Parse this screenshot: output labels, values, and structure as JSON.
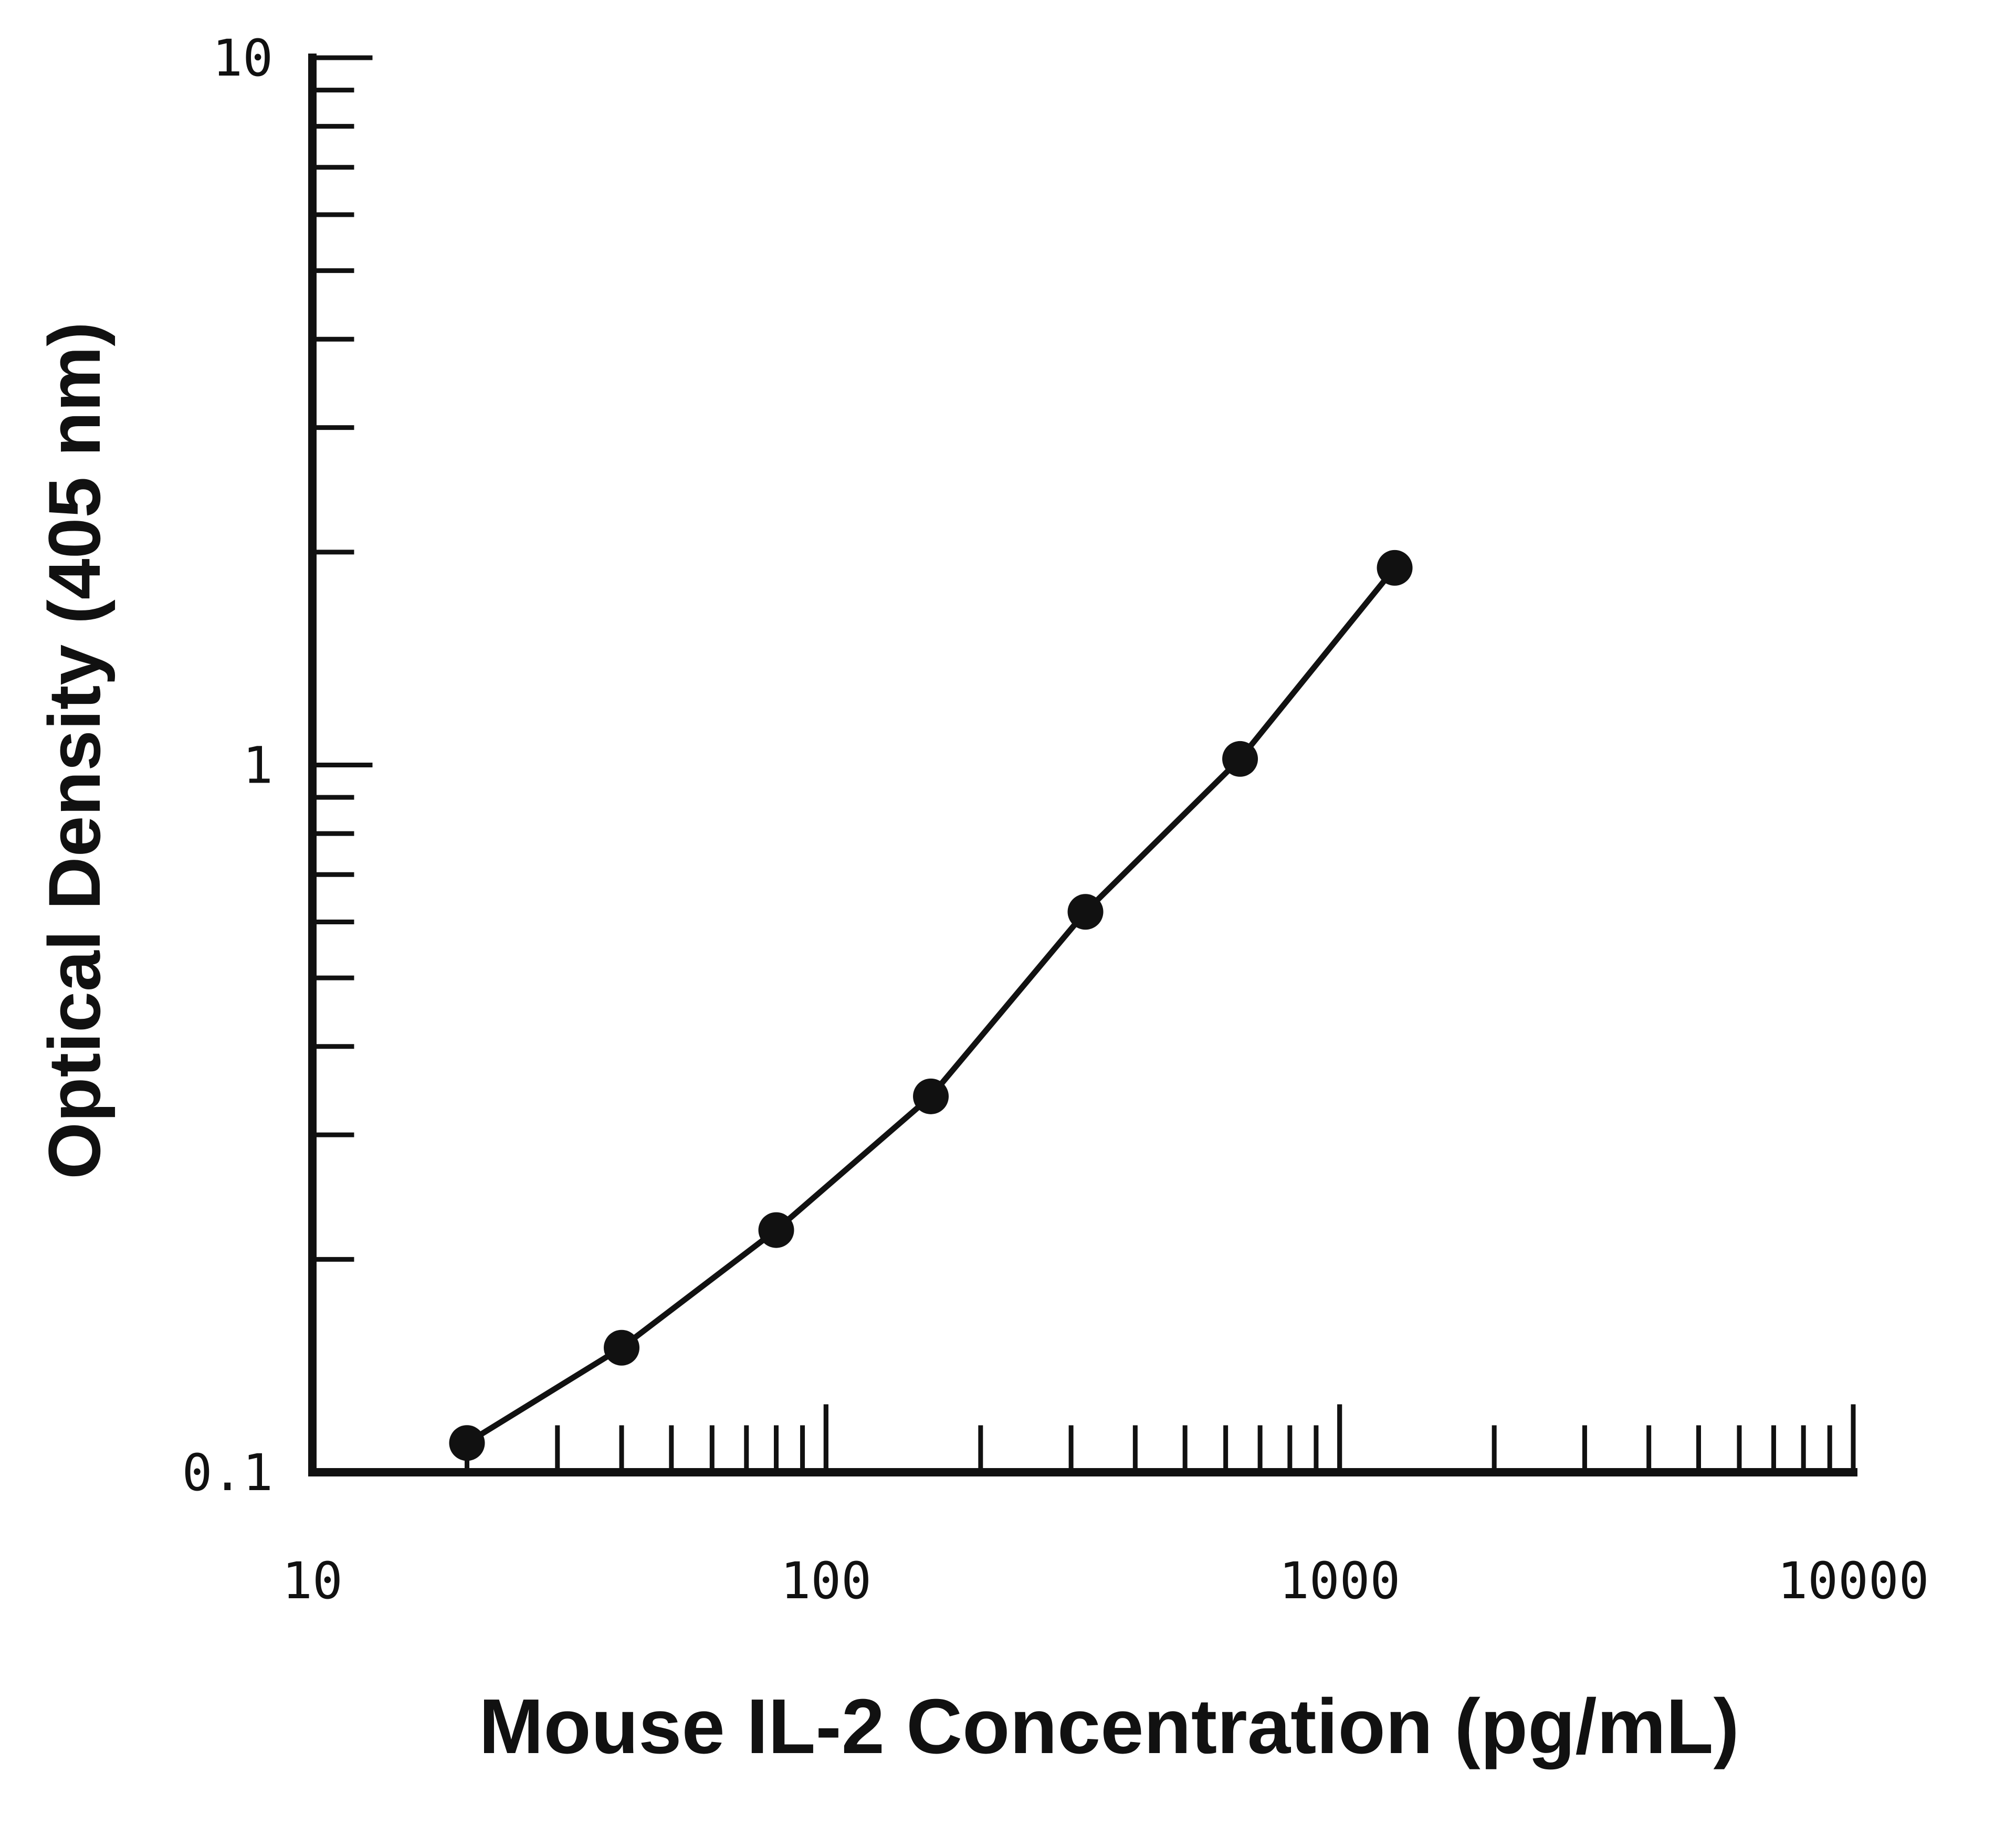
{
  "chart_data": {
    "type": "line",
    "title": "",
    "xlabel": "Mouse IL-2 Concentration (pg/mL)",
    "ylabel": "Optical Density (405 nm)",
    "x_scale": "log",
    "y_scale": "log",
    "xlim": [
      10,
      10000
    ],
    "ylim": [
      0.1,
      10
    ],
    "x_ticks": [
      "10",
      "100",
      "1000",
      "10000"
    ],
    "y_ticks": [
      "0.1",
      "1",
      "10"
    ],
    "grid": false,
    "legend": "none",
    "color": "#111111",
    "x": [
      20,
      40,
      80,
      160,
      320,
      640,
      1280
    ],
    "y": [
      0.11,
      0.15,
      0.22,
      0.34,
      0.62,
      1.02,
      1.9
    ]
  }
}
